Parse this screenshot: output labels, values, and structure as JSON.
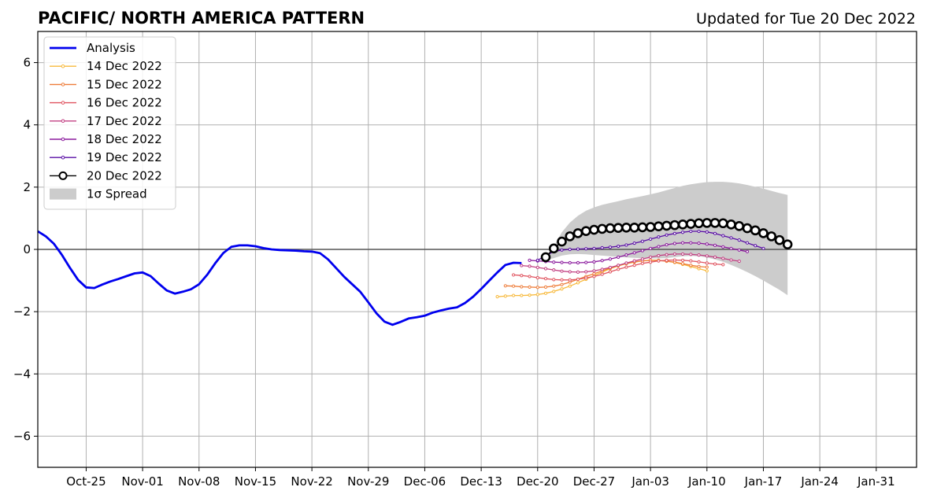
{
  "title": "PACIFIC/ NORTH AMERICA PATTERN",
  "subtitle": "Updated for Tue 20 Dec 2022",
  "chart_data": {
    "type": "line",
    "title": "PACIFIC/ NORTH AMERICA PATTERN",
    "subtitle": "Updated for Tue 20 Dec 2022",
    "xlabel": "",
    "ylabel": "",
    "x_range": [
      "2022-10-19",
      "2023-02-05"
    ],
    "ylim": [
      -7,
      7
    ],
    "yticks": [
      -6,
      -4,
      -2,
      0,
      2,
      4,
      6
    ],
    "ytick_labels": [
      "−6",
      "−4",
      "−2",
      "0",
      "2",
      "4",
      "6"
    ],
    "xticks": [
      "2022-10-25",
      "2022-11-01",
      "2022-11-08",
      "2022-11-15",
      "2022-11-22",
      "2022-11-29",
      "2022-12-06",
      "2022-12-13",
      "2022-12-20",
      "2022-12-27",
      "2023-01-03",
      "2023-01-10",
      "2023-01-17",
      "2023-01-24",
      "2023-01-31"
    ],
    "xtick_labels": [
      "Oct-25",
      "Nov-01",
      "Nov-08",
      "Nov-15",
      "Nov-22",
      "Nov-29",
      "Dec-06",
      "Dec-13",
      "Dec-20",
      "Dec-27",
      "Jan-03",
      "Jan-10",
      "Jan-17",
      "Jan-24",
      "Jan-31"
    ],
    "grid": true,
    "zero_line": true,
    "legend_position": "upper-left",
    "analysis": {
      "name": "Analysis",
      "color": "#0000ee",
      "start_date": "2022-10-19",
      "values": [
        0.58,
        0.42,
        0.18,
        -0.18,
        -0.6,
        -0.98,
        -1.22,
        -1.24,
        -1.13,
        -1.03,
        -0.95,
        -0.86,
        -0.77,
        -0.74,
        -0.86,
        -1.1,
        -1.32,
        -1.42,
        -1.36,
        -1.28,
        -1.12,
        -0.82,
        -0.45,
        -0.12,
        0.08,
        0.13,
        0.13,
        0.1,
        0.04,
        0.0,
        -0.02,
        -0.03,
        -0.04,
        -0.06,
        -0.07,
        -0.12,
        -0.32,
        -0.6,
        -0.88,
        -1.12,
        -1.36,
        -1.7,
        -2.05,
        -2.32,
        -2.42,
        -2.33,
        -2.22,
        -2.18,
        -2.13,
        -2.03,
        -1.96,
        -1.9,
        -1.86,
        -1.72,
        -1.52,
        -1.27,
        -1.0,
        -0.74,
        -0.5,
        -0.43,
        -0.44
      ]
    },
    "forecasts": [
      {
        "name": "14 Dec 2022",
        "color": "#f7b93b",
        "start_date": "2022-12-15",
        "values": [
          -1.52,
          -1.5,
          -1.48,
          -1.48,
          -1.47,
          -1.45,
          -1.41,
          -1.35,
          -1.27,
          -1.18,
          -1.07,
          -0.96,
          -0.84,
          -0.73,
          -0.62,
          -0.53,
          -0.46,
          -0.41,
          -0.37,
          -0.35,
          -0.35,
          -0.38,
          -0.42,
          -0.48,
          -0.55,
          -0.62,
          -0.69
        ]
      },
      {
        "name": "15 Dec 2022",
        "color": "#ee7d3a",
        "start_date": "2022-12-16",
        "values": [
          -1.17,
          -1.18,
          -1.2,
          -1.21,
          -1.22,
          -1.21,
          -1.18,
          -1.13,
          -1.05,
          -0.96,
          -0.87,
          -0.78,
          -0.69,
          -0.6,
          -0.52,
          -0.45,
          -0.4,
          -0.37,
          -0.35,
          -0.36,
          -0.38,
          -0.41,
          -0.46,
          -0.51,
          -0.55,
          -0.57
        ]
      },
      {
        "name": "16 Dec 2022",
        "color": "#e05460",
        "start_date": "2022-12-17",
        "values": [
          -0.82,
          -0.84,
          -0.87,
          -0.91,
          -0.94,
          -0.97,
          -0.98,
          -0.98,
          -0.96,
          -0.92,
          -0.87,
          -0.8,
          -0.72,
          -0.64,
          -0.57,
          -0.51,
          -0.45,
          -0.41,
          -0.37,
          -0.35,
          -0.34,
          -0.35,
          -0.37,
          -0.4,
          -0.44,
          -0.47,
          -0.49
        ]
      },
      {
        "name": "17 Dec 2022",
        "color": "#c23f82",
        "start_date": "2022-12-18",
        "values": [
          -0.52,
          -0.54,
          -0.58,
          -0.62,
          -0.66,
          -0.7,
          -0.72,
          -0.73,
          -0.72,
          -0.69,
          -0.64,
          -0.58,
          -0.51,
          -0.44,
          -0.37,
          -0.31,
          -0.25,
          -0.2,
          -0.17,
          -0.15,
          -0.15,
          -0.16,
          -0.18,
          -0.21,
          -0.25,
          -0.29,
          -0.34,
          -0.38
        ]
      },
      {
        "name": "18 Dec 2022",
        "color": "#8c1c9e",
        "start_date": "2022-12-19",
        "values": [
          -0.35,
          -0.37,
          -0.39,
          -0.41,
          -0.42,
          -0.43,
          -0.43,
          -0.42,
          -0.4,
          -0.36,
          -0.31,
          -0.25,
          -0.18,
          -0.11,
          -0.04,
          0.03,
          0.09,
          0.15,
          0.19,
          0.21,
          0.21,
          0.2,
          0.17,
          0.13,
          0.08,
          0.03,
          -0.02,
          -0.07
        ]
      },
      {
        "name": "19 Dec 2022",
        "color": "#5a0fa6",
        "start_date": "2022-12-20",
        "values": [
          -0.35,
          -0.2,
          -0.07,
          -0.02,
          0.0,
          0.01,
          0.02,
          0.03,
          0.05,
          0.07,
          0.1,
          0.14,
          0.2,
          0.26,
          0.33,
          0.4,
          0.46,
          0.51,
          0.55,
          0.58,
          0.58,
          0.56,
          0.51,
          0.44,
          0.37,
          0.3,
          0.21,
          0.12,
          0.03
        ]
      },
      {
        "name": "20 Dec 2022",
        "color": "#000000",
        "start_date": "2022-12-21",
        "values": [
          -0.25,
          0.03,
          0.25,
          0.42,
          0.52,
          0.59,
          0.63,
          0.66,
          0.68,
          0.69,
          0.7,
          0.7,
          0.71,
          0.72,
          0.74,
          0.76,
          0.78,
          0.8,
          0.82,
          0.84,
          0.85,
          0.85,
          0.84,
          0.8,
          0.75,
          0.68,
          0.61,
          0.52,
          0.42,
          0.3,
          0.16
        ]
      }
    ],
    "spread": {
      "name": "1σ Spread",
      "color": "#cccccc",
      "start_date": "2022-12-21",
      "upper": [
        -0.35,
        0.1,
        0.55,
        0.86,
        1.08,
        1.24,
        1.35,
        1.43,
        1.49,
        1.55,
        1.61,
        1.66,
        1.71,
        1.77,
        1.83,
        1.9,
        1.97,
        2.04,
        2.09,
        2.13,
        2.16,
        2.17,
        2.17,
        2.15,
        2.12,
        2.07,
        2.01,
        1.95,
        1.88,
        1.81,
        1.75
      ],
      "lower": [
        -0.35,
        -0.28,
        -0.2,
        -0.16,
        -0.15,
        -0.16,
        -0.18,
        -0.2,
        -0.22,
        -0.24,
        -0.26,
        -0.27,
        -0.28,
        -0.29,
        -0.29,
        -0.28,
        -0.25,
        -0.22,
        -0.21,
        -0.22,
        -0.26,
        -0.32,
        -0.4,
        -0.5,
        -0.61,
        -0.73,
        -0.86,
        -1.0,
        -1.15,
        -1.3,
        -1.47
      ]
    }
  }
}
